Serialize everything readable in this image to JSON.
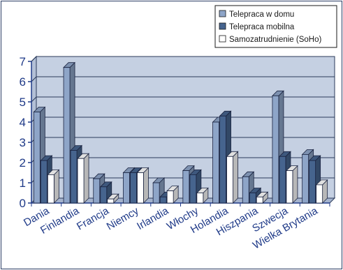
{
  "chart_data": {
    "type": "bar",
    "categories": [
      "Dania",
      "Finlandia",
      "Francja",
      "Niemcy",
      "Irlandia",
      "Włochy",
      "Holandia",
      "Hiszpania",
      "Szwecja",
      "Wielka Brytania"
    ],
    "series": [
      {
        "name": "Telepraca w domu",
        "color": "#8ea5c8",
        "values": [
          4.5,
          6.7,
          1.2,
          1.5,
          1.0,
          1.6,
          4.0,
          1.3,
          5.3,
          2.4
        ]
      },
      {
        "name": "Telepraca mobilna",
        "color": "#46648e",
        "values": [
          2.1,
          2.6,
          0.8,
          1.5,
          0.3,
          1.4,
          4.3,
          0.5,
          2.3,
          2.1
        ]
      },
      {
        "name": "Samozatrudnienie (SoHo)",
        "color": "#ffffff",
        "values": [
          1.4,
          2.2,
          0.2,
          1.5,
          0.6,
          0.5,
          2.3,
          0.3,
          1.6,
          0.9
        ]
      }
    ],
    "ylim": [
      0,
      7
    ],
    "yticks": [
      "0",
      "1",
      "2",
      "3",
      "4",
      "5",
      "6",
      "7"
    ],
    "grid": true,
    "legend": "top-right",
    "plot_background": "#c5d0e2"
  }
}
